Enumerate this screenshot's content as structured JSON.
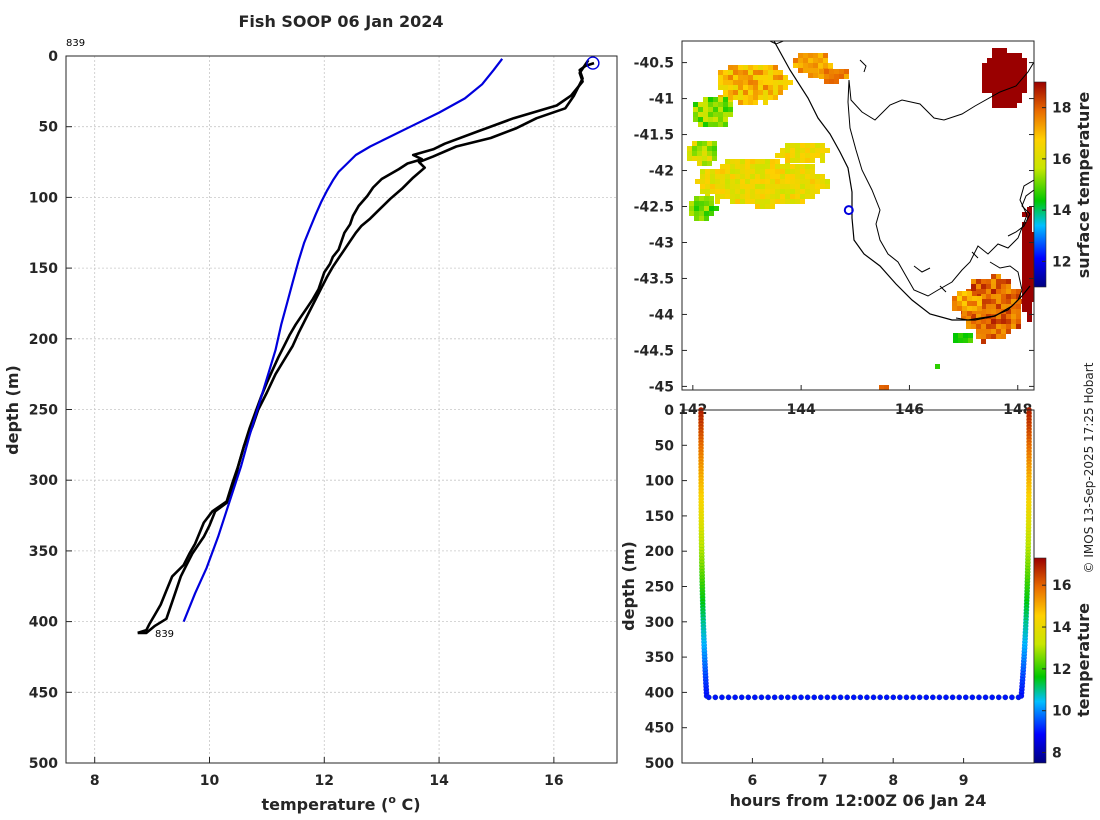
{
  "title": "Fish SOOP 06 Jan 2024",
  "credit": "© IMOS 13-Sep-2025 17:25 Hobart",
  "colors": {
    "profile": "#000000",
    "climatology": "#0000dd",
    "grid": "#c8c8c8",
    "axis": "#262626"
  },
  "chart_data": [
    {
      "id": "profile",
      "type": "line",
      "title": "Fish SOOP 06 Jan 2024",
      "xlabel": "temperature (° C)",
      "xlabel_main": "temperature (",
      "xlabel_sup": "o",
      "xlabel_tail": " C)",
      "ylabel": "depth (m)",
      "xlim": [
        7.5,
        17.1
      ],
      "ylim": [
        500,
        0
      ],
      "xticks": [
        8,
        10,
        12,
        14,
        16
      ],
      "yticks": [
        0,
        50,
        100,
        150,
        200,
        250,
        300,
        350,
        400,
        450,
        500
      ],
      "grid": true,
      "labels": [
        {
          "text": "839",
          "x": 7.5,
          "y": -10
        },
        {
          "text": "839",
          "x": 9.05,
          "y": 408
        }
      ],
      "series": [
        {
          "name": "down cast",
          "color": "#000000",
          "points": [
            [
              16.6,
              3
            ],
            [
              16.55,
              6
            ],
            [
              16.45,
              12
            ],
            [
              16.5,
              18
            ],
            [
              16.3,
              28
            ],
            [
              16.05,
              35
            ],
            [
              15.3,
              44
            ],
            [
              14.7,
              53
            ],
            [
              14.1,
              62
            ],
            [
              13.9,
              66
            ],
            [
              13.55,
              70
            ],
            [
              13.7,
              73
            ],
            [
              13.45,
              76
            ],
            [
              13.3,
              80
            ],
            [
              13.0,
              87
            ],
            [
              12.85,
              93
            ],
            [
              12.75,
              99
            ],
            [
              12.6,
              106
            ],
            [
              12.5,
              113
            ],
            [
              12.45,
              119
            ],
            [
              12.35,
              125
            ],
            [
              12.3,
              131
            ],
            [
              12.25,
              137
            ],
            [
              12.15,
              142
            ],
            [
              12.1,
              147
            ],
            [
              12.0,
              153
            ],
            [
              11.95,
              159
            ],
            [
              11.9,
              165
            ],
            [
              11.8,
              172
            ],
            [
              11.7,
              178
            ],
            [
              11.6,
              184
            ],
            [
              11.5,
              190
            ],
            [
              11.4,
              197
            ],
            [
              11.3,
              205
            ],
            [
              11.2,
              213
            ],
            [
              11.1,
              222
            ],
            [
              11.0,
              231
            ],
            [
              10.9,
              241
            ],
            [
              10.8,
              252
            ],
            [
              10.7,
              263
            ],
            [
              10.6,
              276
            ],
            [
              10.5,
              290
            ],
            [
              10.45,
              300
            ],
            [
              10.35,
              310
            ],
            [
              10.3,
              316
            ],
            [
              10.1,
              322
            ],
            [
              10.0,
              332
            ],
            [
              9.9,
              340
            ],
            [
              9.8,
              346
            ],
            [
              9.7,
              352
            ],
            [
              9.6,
              360
            ],
            [
              9.5,
              368
            ],
            [
              9.4,
              380
            ],
            [
              9.3,
              392
            ],
            [
              9.25,
              398
            ],
            [
              9.05,
              403
            ],
            [
              8.9,
              408
            ],
            [
              8.75,
              408
            ]
          ]
        },
        {
          "name": "up cast",
          "color": "#000000",
          "points": [
            [
              8.75,
              408
            ],
            [
              8.9,
              406
            ],
            [
              8.95,
              402
            ],
            [
              9.05,
              395
            ],
            [
              9.15,
              388
            ],
            [
              9.25,
              378
            ],
            [
              9.35,
              368
            ],
            [
              9.55,
              360
            ],
            [
              9.65,
              352
            ],
            [
              9.75,
              345
            ],
            [
              9.9,
              330
            ],
            [
              10.05,
              322
            ],
            [
              10.3,
              315
            ],
            [
              10.4,
              302
            ],
            [
              10.5,
              290
            ],
            [
              10.6,
              276
            ],
            [
              10.75,
              262
            ],
            [
              10.85,
              250
            ],
            [
              11.0,
              238
            ],
            [
              11.15,
              225
            ],
            [
              11.3,
              215
            ],
            [
              11.45,
              205
            ],
            [
              11.55,
              196
            ],
            [
              11.65,
              188
            ],
            [
              11.75,
              180
            ],
            [
              11.85,
              172
            ],
            [
              11.95,
              164
            ],
            [
              12.05,
              156
            ],
            [
              12.15,
              149
            ],
            [
              12.25,
              143
            ],
            [
              12.35,
              137
            ],
            [
              12.45,
              131
            ],
            [
              12.55,
              125
            ],
            [
              12.65,
              120
            ],
            [
              12.8,
              115
            ],
            [
              12.95,
              109
            ],
            [
              13.15,
              101
            ],
            [
              13.35,
              94
            ],
            [
              13.55,
              86
            ],
            [
              13.75,
              79
            ],
            [
              13.65,
              75
            ],
            [
              13.9,
              71
            ],
            [
              14.3,
              64
            ],
            [
              14.9,
              58
            ],
            [
              15.35,
              51
            ],
            [
              15.7,
              44
            ],
            [
              16.2,
              37
            ],
            [
              16.35,
              28
            ],
            [
              16.5,
              16
            ],
            [
              16.45,
              10
            ],
            [
              16.55,
              7
            ],
            [
              16.7,
              5
            ]
          ]
        },
        {
          "name": "reference profile",
          "color": "#0000dd",
          "points": [
            [
              15.1,
              2
            ],
            [
              14.95,
              10
            ],
            [
              14.75,
              20
            ],
            [
              14.45,
              30
            ],
            [
              14.0,
              40
            ],
            [
              13.5,
              50
            ],
            [
              13.1,
              58
            ],
            [
              12.8,
              64
            ],
            [
              12.55,
              70
            ],
            [
              12.4,
              76
            ],
            [
              12.25,
              82
            ],
            [
              12.15,
              88
            ],
            [
              12.05,
              95
            ],
            [
              11.95,
              103
            ],
            [
              11.85,
              112
            ],
            [
              11.75,
              122
            ],
            [
              11.65,
              132
            ],
            [
              11.55,
              145
            ],
            [
              11.45,
              160
            ],
            [
              11.35,
              175
            ],
            [
              11.25,
              190
            ],
            [
              11.15,
              208
            ],
            [
              11.0,
              228
            ],
            [
              10.85,
              248
            ],
            [
              10.7,
              268
            ],
            [
              10.55,
              290
            ],
            [
              10.35,
              315
            ],
            [
              10.15,
              340
            ],
            [
              9.95,
              362
            ],
            [
              9.75,
              380
            ],
            [
              9.55,
              400
            ]
          ]
        }
      ],
      "markers": [
        {
          "name": "start",
          "x": 16.68,
          "y": 5,
          "color": "#0000dd"
        }
      ]
    },
    {
      "id": "sst-map",
      "type": "heatmap",
      "title": "",
      "xlabel": "",
      "ylabel": "",
      "xlim": [
        141.8,
        148.3
      ],
      "ylim": [
        -45.05,
        -40.2
      ],
      "xticks": [
        142,
        144,
        146,
        148
      ],
      "yticks": [
        -40.5,
        -41,
        -41.5,
        -42,
        -42.5,
        -43,
        -43.5,
        -44,
        -44.5,
        -45
      ],
      "colorbar": {
        "label": "surface temperature",
        "min": 11,
        "max": 19,
        "ticks": [
          12,
          14,
          16,
          18
        ]
      },
      "cast_location": {
        "x": 144.88,
        "y": -42.55
      }
    },
    {
      "id": "section",
      "type": "scatter",
      "title": "",
      "xlabel": "hours from 12:00Z 06 Jan 24",
      "ylabel": "depth (m)",
      "xlim": [
        5.0,
        10.0
      ],
      "ylim": [
        500,
        0
      ],
      "xticks": [
        6,
        7,
        8,
        9
      ],
      "yticks": [
        0,
        50,
        100,
        150,
        200,
        250,
        300,
        350,
        400,
        450,
        500
      ],
      "colorbar": {
        "label": "temperature",
        "min": 7.5,
        "max": 17.3,
        "ticks": [
          8,
          10,
          12,
          14,
          16
        ]
      },
      "descent": {
        "x_start": 5.27,
        "x_end": 5.35,
        "depth_max": 405,
        "t_top": 17.0,
        "t_bottom": 9.0
      },
      "ascent": {
        "x_start": 9.93,
        "x_end": 9.82,
        "depth_max": 405,
        "t_top": 17.0,
        "t_bottom": 9.0
      },
      "bottom": {
        "x_start": 5.38,
        "x_end": 9.78,
        "depth": 407,
        "count": 48,
        "temperature": 9.0
      }
    }
  ]
}
